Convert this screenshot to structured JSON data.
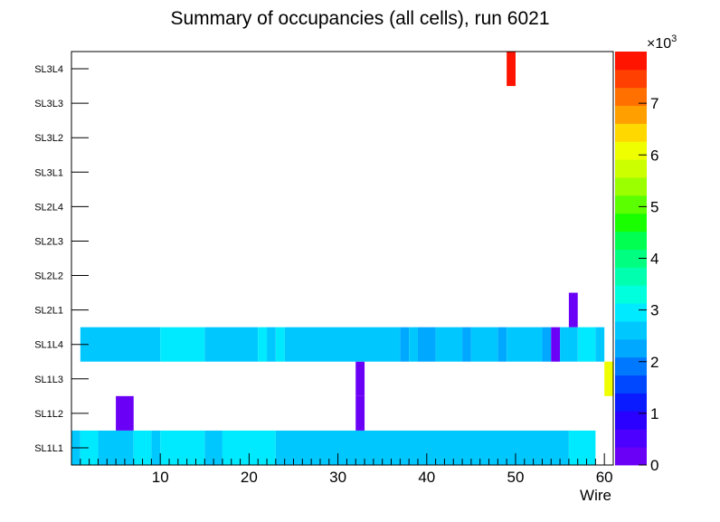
{
  "chart_data": {
    "type": "heatmap",
    "title": "Summary of occupancies (all cells),       run 6021",
    "xlabel": "Wire",
    "ylabel": "",
    "xlim": [
      0,
      61
    ],
    "x_ticks": [
      10,
      20,
      30,
      40,
      50,
      60
    ],
    "y_categories": [
      "SL1L1",
      "SL1L2",
      "SL1L3",
      "SL1L4",
      "SL2L1",
      "SL2L2",
      "SL2L3",
      "SL2L4",
      "SL3L1",
      "SL3L2",
      "SL3L3",
      "SL3L4"
    ],
    "colorbar": {
      "min": 0,
      "max": 8000,
      "multiplier_label": "×10",
      "multiplier_exponent": "3",
      "ticks": [
        0,
        1,
        2,
        3,
        4,
        5,
        6,
        7
      ],
      "palette": [
        "#6a00f5",
        "#4c00ff",
        "#2a00ff",
        "#0a1bff",
        "#0048ff",
        "#0078ff",
        "#00a8ff",
        "#00c8ff",
        "#00eaff",
        "#00ffdd",
        "#00ffaf",
        "#00ff80",
        "#00ff50",
        "#1aff00",
        "#5cff00",
        "#9bff00",
        "#ccff00",
        "#f0ff00",
        "#ffd800",
        "#ffa000",
        "#ff7000",
        "#ff4000",
        "#ff1400"
      ]
    },
    "cells": [
      {
        "layer": "SL1L1",
        "x_from": 0,
        "x_to": 1,
        "value": 2600
      },
      {
        "layer": "SL1L1",
        "x_from": 1,
        "x_to": 3,
        "value": 3100
      },
      {
        "layer": "SL1L1",
        "x_from": 3,
        "x_to": 7,
        "value": 2600
      },
      {
        "layer": "SL1L1",
        "x_from": 7,
        "x_to": 9,
        "value": 3100
      },
      {
        "layer": "SL1L1",
        "x_from": 9,
        "x_to": 10,
        "value": 2600
      },
      {
        "layer": "SL1L1",
        "x_from": 10,
        "x_to": 15,
        "value": 3100
      },
      {
        "layer": "SL1L1",
        "x_from": 15,
        "x_to": 17,
        "value": 2600
      },
      {
        "layer": "SL1L1",
        "x_from": 17,
        "x_to": 23,
        "value": 3100
      },
      {
        "layer": "SL1L1",
        "x_from": 23,
        "x_to": 56,
        "value": 2600
      },
      {
        "layer": "SL1L1",
        "x_from": 56,
        "x_to": 59,
        "value": 3100
      },
      {
        "layer": "SL1L2",
        "x_from": 5,
        "x_to": 7,
        "value": 300
      },
      {
        "layer": "SL1L2",
        "x_from": 32,
        "x_to": 33,
        "value": 300
      },
      {
        "layer": "SL1L3",
        "x_from": 32,
        "x_to": 33,
        "value": 300
      },
      {
        "layer": "SL1L3",
        "x_from": 60,
        "x_to": 61,
        "value": 6000
      },
      {
        "layer": "SL1L4",
        "x_from": 1,
        "x_to": 10,
        "value": 2600
      },
      {
        "layer": "SL1L4",
        "x_from": 10,
        "x_to": 15,
        "value": 3100
      },
      {
        "layer": "SL1L4",
        "x_from": 15,
        "x_to": 21,
        "value": 2600
      },
      {
        "layer": "SL1L4",
        "x_from": 21,
        "x_to": 22,
        "value": 3100
      },
      {
        "layer": "SL1L4",
        "x_from": 22,
        "x_to": 23,
        "value": 2600
      },
      {
        "layer": "SL1L4",
        "x_from": 23,
        "x_to": 24,
        "value": 3100
      },
      {
        "layer": "SL1L4",
        "x_from": 24,
        "x_to": 37,
        "value": 2600
      },
      {
        "layer": "SL1L4",
        "x_from": 37,
        "x_to": 38,
        "value": 2100
      },
      {
        "layer": "SL1L4",
        "x_from": 38,
        "x_to": 39,
        "value": 2600
      },
      {
        "layer": "SL1L4",
        "x_from": 39,
        "x_to": 41,
        "value": 2100
      },
      {
        "layer": "SL1L4",
        "x_from": 41,
        "x_to": 44,
        "value": 2600
      },
      {
        "layer": "SL1L4",
        "x_from": 44,
        "x_to": 45,
        "value": 2100
      },
      {
        "layer": "SL1L4",
        "x_from": 45,
        "x_to": 48,
        "value": 2600
      },
      {
        "layer": "SL1L4",
        "x_from": 48,
        "x_to": 49,
        "value": 2100
      },
      {
        "layer": "SL1L4",
        "x_from": 49,
        "x_to": 53,
        "value": 2600
      },
      {
        "layer": "SL1L4",
        "x_from": 53,
        "x_to": 54,
        "value": 2100
      },
      {
        "layer": "SL1L4",
        "x_from": 54,
        "x_to": 55,
        "value": 300
      },
      {
        "layer": "SL1L4",
        "x_from": 55,
        "x_to": 57,
        "value": 2600
      },
      {
        "layer": "SL1L4",
        "x_from": 57,
        "x_to": 59,
        "value": 3100
      },
      {
        "layer": "SL1L4",
        "x_from": 59,
        "x_to": 60,
        "value": 2600
      },
      {
        "layer": "SL2L1",
        "x_from": 56,
        "x_to": 57,
        "value": 300
      },
      {
        "layer": "SL3L4",
        "x_from": 49,
        "x_to": 50,
        "value": 7900
      }
    ]
  }
}
